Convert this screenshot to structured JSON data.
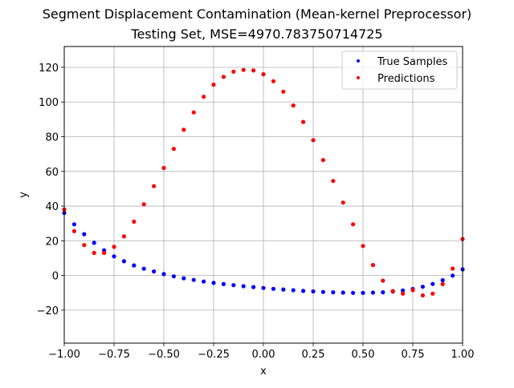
{
  "chart_data": {
    "type": "scatter",
    "title": "Segment Displacement Contamination (Mean-kernel Preprocessor)",
    "subtitle": "Testing Set, MSE=4970.783750714725",
    "xlabel": "x",
    "ylabel": "y",
    "xlim": [
      -1.0,
      1.0
    ],
    "ylim": [
      -39,
      132
    ],
    "grid": true,
    "legend_position": "top-right",
    "x_ticks": [
      -1.0,
      -0.75,
      -0.5,
      -0.25,
      0.0,
      0.25,
      0.5,
      0.75,
      1.0
    ],
    "x_tick_labels": [
      "−1.00",
      "−0.75",
      "−0.50",
      "−0.25",
      "0.00",
      "0.25",
      "0.50",
      "0.75",
      "1.00"
    ],
    "y_ticks": [
      -20,
      0,
      20,
      40,
      60,
      80,
      100,
      120
    ],
    "y_tick_labels": [
      "−20",
      "0",
      "20",
      "40",
      "60",
      "80",
      "100",
      "120"
    ],
    "series": [
      {
        "name": "True Samples",
        "color": "#0000ff",
        "x": [
          -1.0,
          -0.95,
          -0.9,
          -0.85,
          -0.8,
          -0.75,
          -0.7,
          -0.65,
          -0.6,
          -0.55,
          -0.5,
          -0.45,
          -0.4,
          -0.35,
          -0.3,
          -0.25,
          -0.2,
          -0.15,
          -0.1,
          -0.05,
          0.0,
          0.05,
          0.1,
          0.15,
          0.2,
          0.25,
          0.3,
          0.35,
          0.4,
          0.45,
          0.5,
          0.55,
          0.6,
          0.65,
          0.7,
          0.75,
          0.8,
          0.85,
          0.9,
          0.95,
          1.0
        ],
        "y": [
          36,
          29.5,
          23.8,
          18.8,
          14.5,
          11.0,
          8.2,
          5.8,
          3.9,
          2.3,
          0.8,
          -0.5,
          -1.6,
          -2.6,
          -3.5,
          -4.3,
          -5.0,
          -5.6,
          -6.2,
          -6.7,
          -7.2,
          -7.7,
          -8.1,
          -8.5,
          -8.9,
          -9.2,
          -9.5,
          -9.7,
          -9.9,
          -10.0,
          -10.0,
          -9.9,
          -9.7,
          -9.3,
          -8.7,
          -7.8,
          -6.5,
          -4.9,
          -2.7,
          -0.1,
          3.5
        ]
      },
      {
        "name": "Predictions",
        "color": "#ff0000",
        "x": [
          -1.0,
          -0.95,
          -0.9,
          -0.85,
          -0.8,
          -0.75,
          -0.7,
          -0.65,
          -0.6,
          -0.55,
          -0.5,
          -0.45,
          -0.4,
          -0.35,
          -0.3,
          -0.25,
          -0.2,
          -0.15,
          -0.1,
          -0.05,
          0.0,
          0.05,
          0.1,
          0.15,
          0.2,
          0.25,
          0.3,
          0.35,
          0.4,
          0.45,
          0.5,
          0.55,
          0.6,
          0.65,
          0.7,
          0.75,
          0.8,
          0.85,
          0.9,
          0.95,
          1.0
        ],
        "y": [
          38,
          25.5,
          17.5,
          13.0,
          13.0,
          16.5,
          22.5,
          31.0,
          41.0,
          51.5,
          62.0,
          73.0,
          84.0,
          94.0,
          103.0,
          110.0,
          114.5,
          117.5,
          118.5,
          118.2,
          116.0,
          112.0,
          106.0,
          98.0,
          88.5,
          78.0,
          66.5,
          54.5,
          42.0,
          29.5,
          17.0,
          6.0,
          -3.0,
          -9.0,
          -10.5,
          -8.5,
          -11.5,
          -10.5,
          -5.0,
          4.0,
          21.0
        ]
      }
    ]
  }
}
